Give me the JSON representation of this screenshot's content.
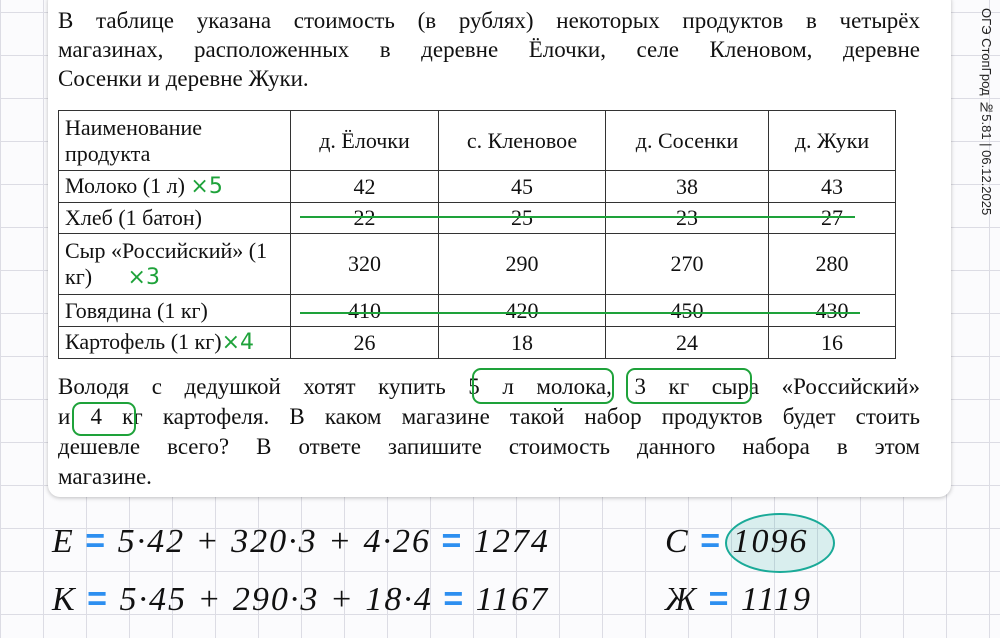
{
  "side_label": "ОГЭ СтопГрод №5.81 | 06.12.2025",
  "intro": [
    "В таблице указана стоимость (в рублях) некоторых продуктов в четырёх",
    "магазинах, расположенных в деревне Ёлочки, селе Кленовом, деревне",
    "Сосенки и деревне Жуки."
  ],
  "table": {
    "headers": [
      "Наименование продукта",
      "д. Ёлочки",
      "с. Кленовое",
      "д. Сосенки",
      "д. Жуки"
    ],
    "rows": [
      [
        "Молоко (1 л)",
        "42",
        "45",
        "38",
        "43"
      ],
      [
        "Хлеб (1 батон)",
        "22",
        "25",
        "23",
        "27"
      ],
      [
        "Сыр «Российский» (1 кг)",
        "320",
        "290",
        "270",
        "280"
      ],
      [
        "Говядина (1 кг)",
        "410",
        "420",
        "450",
        "430"
      ],
      [
        "Картофель (1 кг)",
        "26",
        "18",
        "24",
        "16"
      ]
    ]
  },
  "annotations": {
    "milk": "×5",
    "cheese": "×3",
    "potato": "×4"
  },
  "question": [
    "Володя с дедушкой хотят купить 5 л молока, 3 кг сыра «Российский»",
    "и 4 кг картофеля. В каком магазине такой набор продуктов будет стоить",
    "дешевле всего? В ответе запишите стоимость данного набора в этом",
    "магазине."
  ],
  "work": {
    "e": {
      "letter": "Е",
      "expr": "5·42 + 320·3 + 4·26",
      "result": "1274"
    },
    "k": {
      "letter": "К",
      "expr": "5·45 + 290·3 + 18·4",
      "result": "1167"
    },
    "s": {
      "letter": "С",
      "result": "1096"
    },
    "zh": {
      "letter": "Ж",
      "result": "1119"
    },
    "eq": "="
  }
}
